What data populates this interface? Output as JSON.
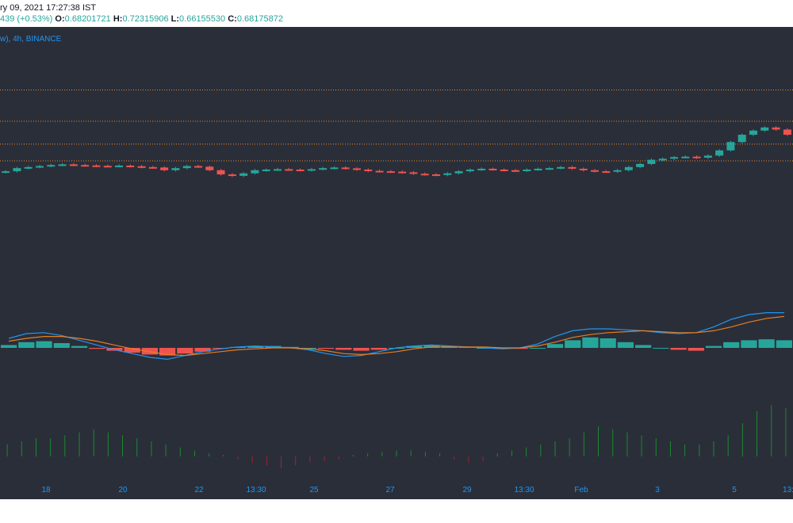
{
  "header": {
    "timestamp": "ry 09, 2021 17:27:38 IST",
    "change": "439 (+0.53%)",
    "o_label": "O:",
    "o_value": "0.68201721",
    "h_label": "H:",
    "h_value": "0.72315906",
    "l_label": "L:",
    "l_value": "0.66155530",
    "c_label": "C:",
    "c_value": "0.68175872"
  },
  "chart_title": "w), 4h, BINANCE",
  "x_labels": [
    "18",
    "20",
    "22",
    "13:30",
    "25",
    "27",
    "29",
    "13:30",
    "Feb",
    "3",
    "5",
    "13:"
  ],
  "colors": {
    "background": "#2a2e39",
    "up": "#26a69a",
    "down": "#ef5350",
    "macd_line": "#2196f3",
    "signal_line": "#e67e22",
    "level_line": "#f08a24",
    "osc_up": "#1b8a2e",
    "osc_down": "#a3232d",
    "axis_text": "#2196f3"
  },
  "chart_data": [
    {
      "type": "candlestick",
      "title": "w), 4h, BINANCE",
      "interval": "4h",
      "exchange": "BINANCE",
      "horizontal_levels": [
        0.72,
        0.705,
        0.694,
        0.686
      ],
      "ylim": [
        0.64,
        0.735
      ],
      "close": [
        0.681,
        0.6825,
        0.683,
        0.6835,
        0.684,
        0.6843,
        0.684,
        0.6838,
        0.6836,
        0.6835,
        0.6837,
        0.6834,
        0.683,
        0.6828,
        0.6815,
        0.6825,
        0.6835,
        0.6832,
        0.6815,
        0.6795,
        0.6788,
        0.68,
        0.6815,
        0.6818,
        0.682,
        0.6818,
        0.6815,
        0.682,
        0.6825,
        0.6828,
        0.6824,
        0.6818,
        0.6812,
        0.681,
        0.6808,
        0.6805,
        0.6798,
        0.6795,
        0.6792,
        0.68,
        0.681,
        0.6818,
        0.6822,
        0.6818,
        0.6815,
        0.6812,
        0.6818,
        0.6822,
        0.6825,
        0.683,
        0.6822,
        0.6815,
        0.681,
        0.6808,
        0.6815,
        0.683,
        0.6845,
        0.6865,
        0.687,
        0.6878,
        0.688,
        0.6875,
        0.6885,
        0.691,
        0.695,
        0.6985,
        0.7005,
        0.702,
        0.701,
        0.6985
      ]
    },
    {
      "type": "bar+line",
      "name": "MACD",
      "lines": [
        "MACD",
        "Signal"
      ],
      "histogram": [
        0.0003,
        0.0006,
        0.0007,
        0.0005,
        0.0002,
        -0.0001,
        -0.0003,
        -0.0005,
        -0.0007,
        -0.0008,
        -0.0006,
        -0.0004,
        -0.0001,
        0.0001,
        0.0002,
        0.0002,
        0.0001,
        0.0,
        -0.0001,
        -0.0002,
        -0.0003,
        -0.0002,
        0.0,
        0.0002,
        0.0003,
        0.0002,
        0.0001,
        0.0,
        -0.0001,
        -0.0001,
        0.0,
        0.0004,
        0.0008,
        0.0011,
        0.001,
        0.0006,
        0.0003,
        0.0,
        -0.0002,
        -0.0003,
        0.0002,
        0.0006,
        0.0008,
        0.0009,
        0.0008
      ],
      "macd": [
        0.001,
        0.0015,
        0.0016,
        0.0013,
        0.0008,
        0.0003,
        -0.0002,
        -0.0006,
        -0.001,
        -0.0012,
        -0.0008,
        -0.0004,
        -0.0001,
        0.0001,
        0.0002,
        0.0001,
        0.0,
        -0.0002,
        -0.0006,
        -0.0009,
        -0.0008,
        -0.0004,
        0.0,
        0.0002,
        0.0003,
        0.0002,
        0.0001,
        0.0,
        -0.0001,
        0.0,
        0.0004,
        0.0012,
        0.0018,
        0.002,
        0.002,
        0.0019,
        0.0018,
        0.0016,
        0.0015,
        0.0016,
        0.0022,
        0.003,
        0.0035,
        0.0037,
        0.0037
      ],
      "signal": [
        0.0007,
        0.001,
        0.0012,
        0.0012,
        0.001,
        0.0007,
        0.0003,
        -0.0001,
        -0.0004,
        -0.0007,
        -0.0008,
        -0.0006,
        -0.0004,
        -0.0002,
        -0.0001,
        0.0,
        0.0,
        -0.0001,
        -0.0003,
        -0.0006,
        -0.0007,
        -0.0006,
        -0.0004,
        -0.0001,
        0.0001,
        0.0001,
        0.0001,
        0.0001,
        0.0,
        0.0,
        0.0002,
        0.0006,
        0.0011,
        0.0014,
        0.0016,
        0.0017,
        0.0018,
        0.0017,
        0.0016,
        0.0016,
        0.0018,
        0.0022,
        0.0027,
        0.0031,
        0.0033
      ]
    },
    {
      "type": "bar",
      "name": "Oscillator",
      "values": [
        0.4,
        0.5,
        0.6,
        0.6,
        0.7,
        0.8,
        0.9,
        0.8,
        0.7,
        0.6,
        0.5,
        0.4,
        0.3,
        0.2,
        0.1,
        0.05,
        -0.1,
        -0.2,
        -0.3,
        -0.4,
        -0.3,
        -0.2,
        -0.15,
        -0.1,
        0.05,
        0.1,
        0.15,
        0.2,
        0.2,
        0.15,
        0.1,
        -0.1,
        -0.2,
        -0.15,
        0.1,
        0.2,
        0.3,
        0.4,
        0.5,
        0.6,
        0.8,
        1.0,
        0.9,
        0.8,
        0.7,
        0.6,
        0.5,
        0.4,
        0.4,
        0.5,
        0.7,
        1.1,
        1.5,
        1.7,
        1.6
      ]
    }
  ]
}
